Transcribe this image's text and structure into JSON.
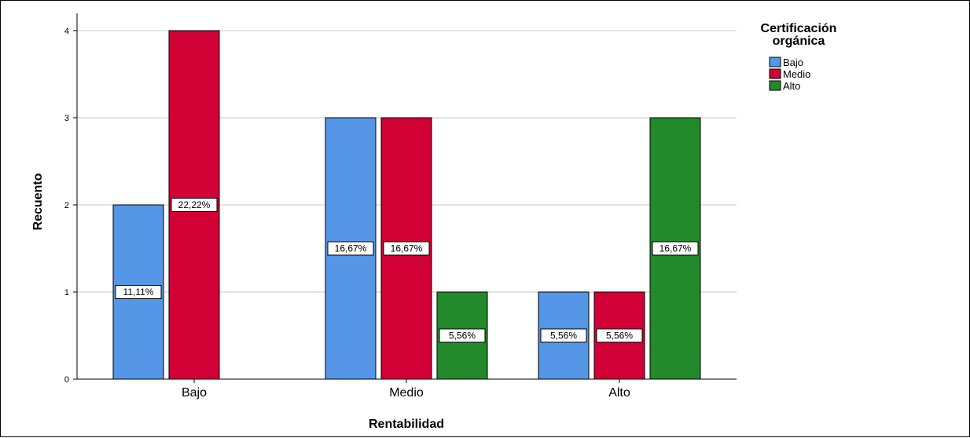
{
  "chart_data": {
    "type": "bar",
    "xlabel": "Rentabilidad",
    "ylabel": "Recuento",
    "ylim": [
      0,
      4
    ],
    "yticks": [
      "0",
      "1",
      "2",
      "3",
      "4"
    ],
    "grid": true,
    "categories": [
      "Bajo",
      "Medio",
      "Alto"
    ],
    "legend": {
      "title_lines": [
        "Certificación",
        "orgánica"
      ],
      "placement": "top-right"
    },
    "series": [
      {
        "name": "Bajo",
        "color": "#5596e6",
        "values": [
          2,
          3,
          1
        ],
        "labels": [
          "11,11%",
          "16,67%",
          "5,56%"
        ]
      },
      {
        "name": "Medio",
        "color": "#d10035",
        "values": [
          4,
          3,
          1
        ],
        "labels": [
          "22,22%",
          "16,67%",
          "5,56%"
        ]
      },
      {
        "name": "Alto",
        "color": "#228a2b",
        "values": [
          0,
          1,
          3
        ],
        "labels": [
          "",
          "5,56%",
          "16,67%"
        ]
      }
    ]
  }
}
